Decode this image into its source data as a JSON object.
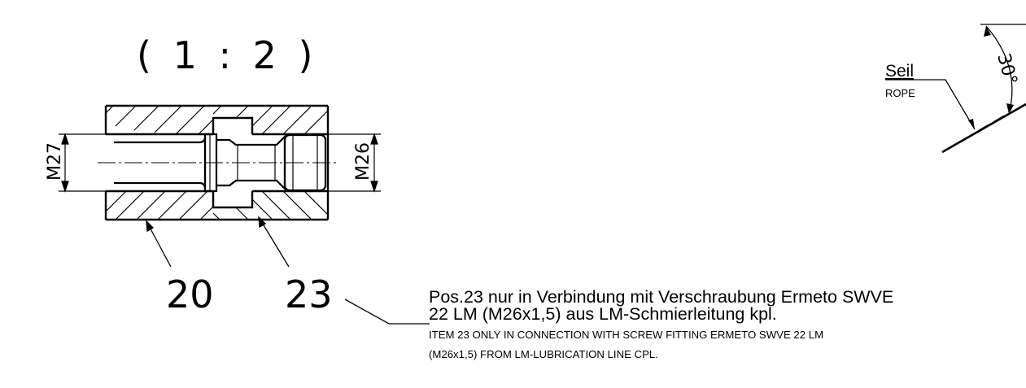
{
  "scale_label": "( 1 : 2 )",
  "section": {
    "left_thread": "M27",
    "right_thread": "M26"
  },
  "callouts": {
    "part_20": "20",
    "part_23": "23"
  },
  "rope": {
    "label_de": "Seil",
    "label_en": "ROPE",
    "angle": "30°"
  },
  "note": {
    "de_line1": "Pos.23 nur in Verbindung mit Verschraubung Ermeto SWVE",
    "de_line2": "22 LM (M26x1,5) aus LM-Schmierleitung kpl.",
    "en_line1": "ITEM 23 ONLY IN CONNECTION WITH SCREW FITTING ERMETO SWVE 22 LM",
    "en_line2": "(M26x1,5) FROM LM-LUBRICATION LINE CPL."
  },
  "colors": {
    "ink": "#000000",
    "paper": "#ffffff"
  }
}
